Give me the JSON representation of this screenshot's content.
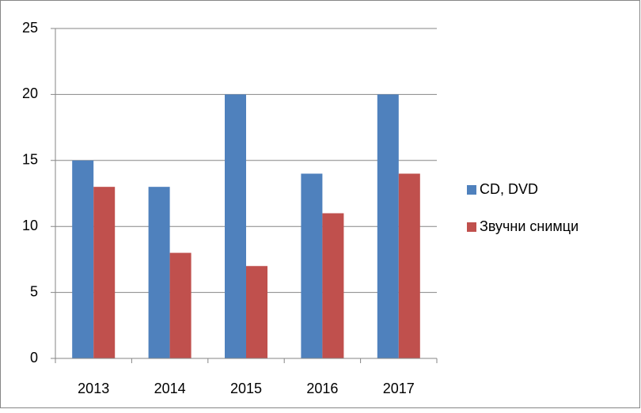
{
  "chart_data": {
    "type": "bar",
    "categories": [
      "2013",
      "2014",
      "2015",
      "2016",
      "2017"
    ],
    "series": [
      {
        "name": "CD, DVD",
        "color": "#4f81bd",
        "values": [
          15,
          13,
          20,
          14,
          20
        ]
      },
      {
        "name": "Звучни снимци",
        "color": "#c0504d",
        "values": [
          13,
          8,
          7,
          11,
          14
        ]
      }
    ],
    "ylim": [
      0,
      25
    ],
    "yticks": [
      0,
      5,
      10,
      15,
      20,
      25
    ],
    "grid": true,
    "legend": "right"
  }
}
